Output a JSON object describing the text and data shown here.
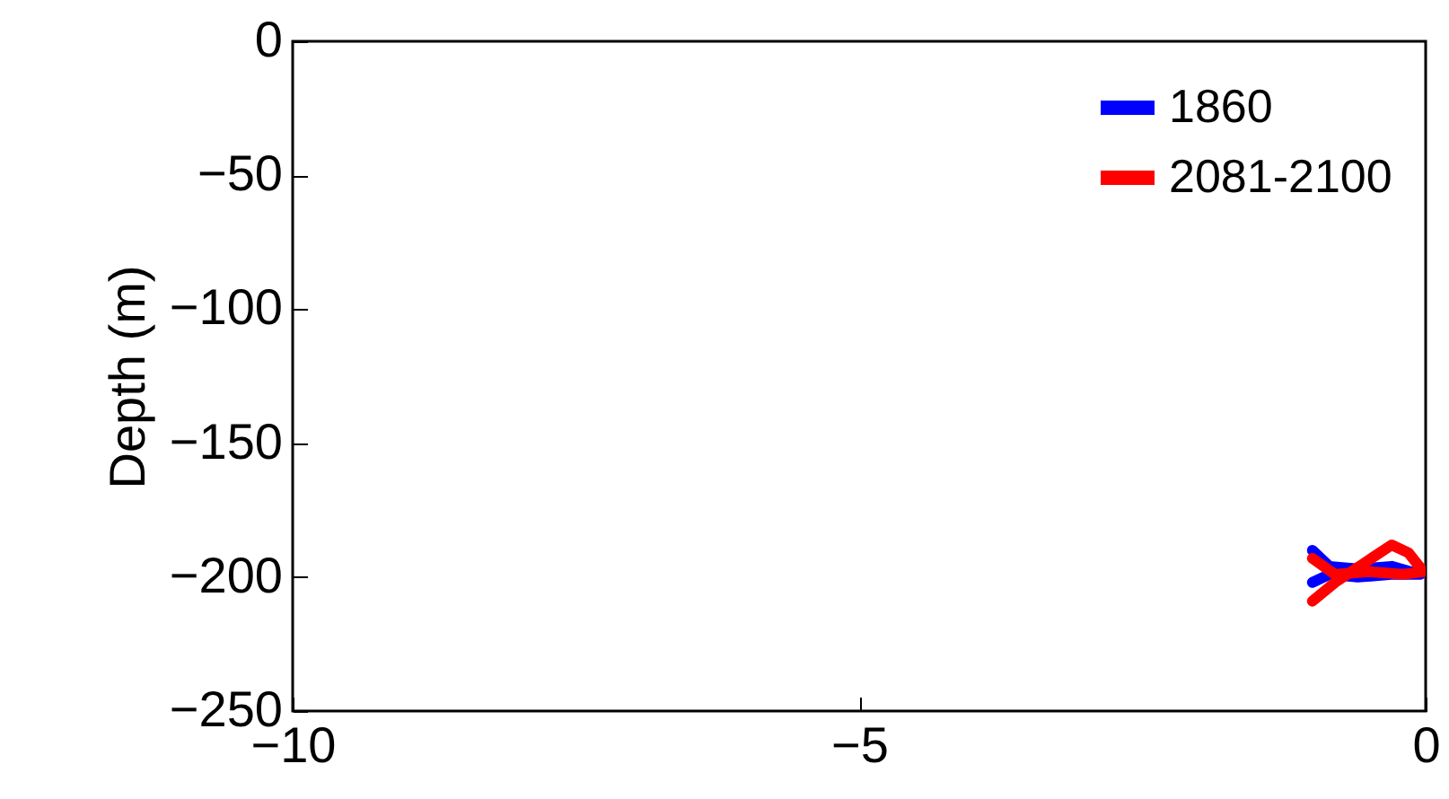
{
  "chart_data": {
    "type": "line",
    "ylabel": "Depth (m)",
    "xlim": [
      -10,
      0
    ],
    "xticks": [
      -10,
      -5,
      0
    ],
    "ylim": [
      -250,
      0
    ],
    "yticks": [
      0,
      -50,
      -100,
      -150,
      -200,
      -250
    ],
    "legend": "top right",
    "grid": false,
    "series": [
      {
        "name": "1860",
        "color": "#0000ff",
        "x": [
          -1.0,
          -0.85,
          -0.6,
          -0.3,
          -0.05,
          -0.3,
          -0.6,
          -0.85,
          -1.0
        ],
        "values": [
          -190,
          -196,
          -197,
          -196,
          -199,
          -199,
          -200,
          -199,
          -202
        ]
      },
      {
        "name": "2081-2100",
        "color": "#ff0000",
        "x": [
          -1.0,
          -0.8,
          -0.55,
          -0.3,
          -0.15,
          -0.02,
          -0.2,
          -0.5,
          -0.8,
          -1.0
        ],
        "values": [
          -209,
          -202,
          -195,
          -188,
          -191,
          -198,
          -199,
          -198,
          -199,
          -193
        ]
      }
    ]
  }
}
